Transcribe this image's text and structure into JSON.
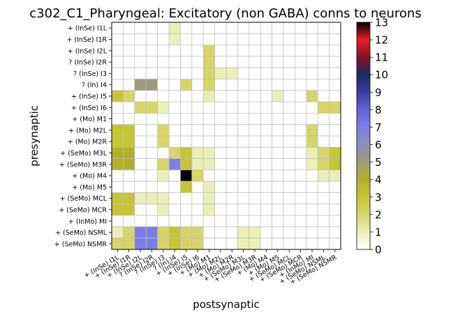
{
  "chart_data": {
    "type": "heatmap",
    "title": "c302_C1_Pharyngeal: Excitatory (non GABA) conns to neurons",
    "xlabel": "postsynaptic",
    "ylabel": "presynaptic",
    "rows": [
      "+ (InSe) I1L",
      "+ (InSe) I1R",
      "+ (InSe) I2L",
      "? (InSe) I2R",
      "? (InSe) I3",
      "? (In) I4",
      "+ (InSe) I5",
      "+ (InSe) I6",
      "+ (Mo) M1",
      "+ (Mo) M2L",
      "+ (Mo) M2R",
      "+ (SeMo) M3L",
      "+ (SeMo) M3R",
      "+ (Mo) M4",
      "+ (Mo) M5",
      "+ (SeMo) MCL",
      "+ (SeMo) MCR",
      "+ (InMo) MI",
      "+ (SeMo) NSML",
      "+ (SeMo) NSMR"
    ],
    "columns": [
      "+ (InSe) I1L",
      "+ (InSe) I1R",
      "+ (InSe) I2L",
      "? (InSe) I2R",
      "? (InSe) I3",
      "? (In) I4",
      "+ (InSe) I5",
      "+ (InSe) I6",
      "+ (Mo) M1",
      "+ (Mo) M2L",
      "+ (Mo) M2R",
      "+ (SeMo) M3L",
      "+ (SeMo) M3R",
      "+ (Mo) M4",
      "+ (Mo) M5",
      "+ (SeMo) MCL",
      "+ (SeMo) MCR",
      "+ (InMo) MI",
      "+ (SeMo) NSML",
      "+ (SeMo) NSMR"
    ],
    "values": [
      [
        0,
        0,
        0,
        0,
        0,
        1,
        0,
        0,
        0,
        0,
        0,
        0,
        0,
        0,
        0,
        0,
        0,
        0,
        0,
        0
      ],
      [
        0,
        0,
        0,
        0,
        0,
        1,
        0,
        0,
        0,
        0,
        0,
        0,
        0,
        0,
        0,
        0,
        0,
        0,
        0,
        0
      ],
      [
        0,
        0,
        0,
        0,
        0,
        0,
        0,
        0,
        2,
        0,
        0,
        0,
        0,
        0,
        0,
        0,
        0,
        0,
        0,
        0
      ],
      [
        0,
        0,
        0,
        0,
        0,
        0,
        0,
        0,
        2,
        0,
        0,
        0,
        0,
        0,
        0,
        0,
        0,
        0,
        0,
        0
      ],
      [
        0,
        0,
        0,
        0,
        0,
        0,
        0,
        0,
        2,
        1,
        1,
        0,
        0,
        0,
        0,
        0,
        0,
        0,
        0,
        0
      ],
      [
        0,
        0,
        5,
        5,
        0,
        0,
        2,
        0,
        2,
        0,
        0,
        0,
        0,
        0,
        0,
        0,
        0,
        0,
        0,
        0
      ],
      [
        3,
        2,
        0,
        0,
        0,
        0,
        0,
        0,
        1,
        0,
        0,
        0,
        0,
        0,
        1,
        0,
        0,
        2,
        0,
        0
      ],
      [
        0,
        0,
        2,
        2,
        1,
        0,
        0,
        0,
        0,
        0,
        0,
        0,
        0,
        0,
        0,
        0,
        0,
        0,
        2,
        2
      ],
      [
        0,
        0,
        0,
        0,
        0,
        0,
        0,
        0,
        0,
        0,
        0,
        0,
        0,
        0,
        0,
        0,
        0,
        0,
        0,
        0
      ],
      [
        3,
        3,
        0,
        0,
        2,
        0,
        0,
        0,
        0,
        0,
        0,
        0,
        0,
        0,
        0,
        0,
        0,
        2,
        0,
        0
      ],
      [
        3,
        3,
        0,
        0,
        2,
        0,
        0,
        0,
        0,
        0,
        0,
        0,
        0,
        0,
        0,
        0,
        0,
        2,
        0,
        0
      ],
      [
        4,
        4,
        0,
        0,
        0,
        2,
        3,
        1,
        1,
        0,
        0,
        0,
        0,
        0,
        0,
        0,
        0,
        1,
        2,
        3
      ],
      [
        4,
        4,
        0,
        0,
        2,
        7,
        3,
        1,
        1,
        0,
        0,
        0,
        0,
        0,
        0,
        0,
        0,
        1,
        2,
        3
      ],
      [
        0,
        0,
        0,
        0,
        1,
        0,
        13,
        2,
        0,
        0,
        0,
        0,
        0,
        0,
        0,
        0,
        0,
        0,
        1,
        1
      ],
      [
        0,
        0,
        0,
        0,
        0,
        0,
        3,
        0,
        1,
        0,
        0,
        0,
        0,
        0,
        0,
        0,
        0,
        0,
        0,
        0
      ],
      [
        3,
        3,
        1,
        1,
        1,
        0,
        0,
        0,
        1,
        0,
        0,
        0,
        0,
        0,
        0,
        0,
        0,
        0,
        0,
        0
      ],
      [
        3,
        3,
        0,
        0,
        1,
        0,
        0,
        0,
        1,
        0,
        0,
        0,
        0,
        0,
        0,
        0,
        0,
        0,
        0,
        0
      ],
      [
        0,
        0,
        0,
        0,
        0,
        0,
        0,
        0,
        0,
        0,
        0,
        0,
        0,
        0,
        0,
        0,
        0,
        0,
        0,
        0
      ],
      [
        1,
        2,
        7,
        7,
        2,
        3,
        2,
        2,
        0,
        0,
        0,
        1,
        1,
        0,
        0,
        0,
        0,
        0,
        0,
        0
      ],
      [
        2,
        2,
        7,
        7,
        2,
        3,
        2,
        2,
        0,
        0,
        0,
        1,
        1,
        0,
        0,
        0,
        0,
        0,
        0,
        0
      ]
    ],
    "colorbar": {
      "colormap": "gist_stern_r",
      "range": [
        0,
        13
      ],
      "ticks": [
        "0",
        "1",
        "2",
        "3",
        "4",
        "5",
        "6",
        "7",
        "8",
        "9",
        "10",
        "11",
        "12",
        "13"
      ]
    },
    "grid": true
  }
}
